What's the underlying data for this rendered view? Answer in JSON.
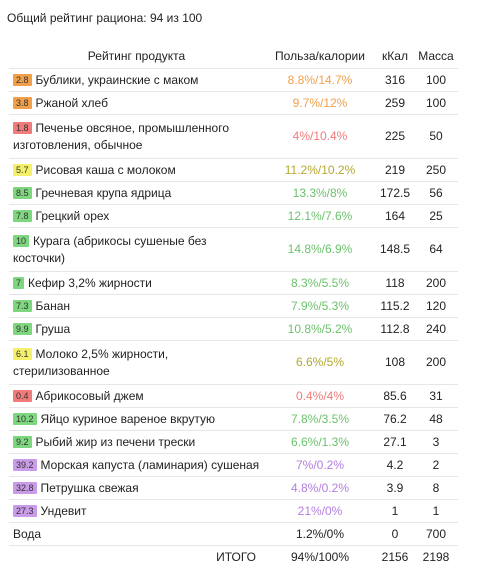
{
  "summary": "Общий рейтинг рациона: 94 из 100",
  "headers": {
    "product": "Рейтинг продукта",
    "ratio": "Польза/калории",
    "kcal": "кКал",
    "mass": "Масса"
  },
  "rows": [
    {
      "badge": "2.8",
      "badge_color": "#f0a04b",
      "name": "Бублики, украинские с маком",
      "ratio": "8.8%/14.7%",
      "ratio_color": "#f0a04b",
      "kcal": "316",
      "mass": "100",
      "tall": false
    },
    {
      "badge": "3.8",
      "badge_color": "#f0a04b",
      "name": "Ржаной хлеб",
      "ratio": "9.7%/12%",
      "ratio_color": "#f0a04b",
      "kcal": "259",
      "mass": "100",
      "tall": false
    },
    {
      "badge": "1.8",
      "badge_color": "#f07b7b",
      "name": "Печенье овсяное, промышленного изготовления, обычное",
      "ratio": "4%/10.4%",
      "ratio_color": "#f07b7b",
      "kcal": "225",
      "mass": "50",
      "tall": true
    },
    {
      "badge": "5.7",
      "badge_color": "#f4f06a",
      "name": "Рисовая каша с молоком",
      "ratio": "11.2%/10.2%",
      "ratio_color": "#b5a82e",
      "kcal": "219",
      "mass": "250",
      "tall": false
    },
    {
      "badge": "8.5",
      "badge_color": "#7ed67e",
      "name": "Гречневая крупа ядрица",
      "ratio": "13.3%/8%",
      "ratio_color": "#6cc26c",
      "kcal": "172.5",
      "mass": "56",
      "tall": false
    },
    {
      "badge": "7.8",
      "badge_color": "#7ed67e",
      "name": "Грецкий орех",
      "ratio": "12.1%/7.6%",
      "ratio_color": "#6cc26c",
      "kcal": "164",
      "mass": "25",
      "tall": false
    },
    {
      "badge": "10",
      "badge_color": "#7ed67e",
      "name": "Курага (абрикосы сушеные без косточки)",
      "ratio": "14.8%/6.9%",
      "ratio_color": "#6cc26c",
      "kcal": "148.5",
      "mass": "64",
      "tall": true
    },
    {
      "badge": "7",
      "badge_color": "#7ed67e",
      "name": "Кефир 3,2% жирности",
      "ratio": "8.3%/5.5%",
      "ratio_color": "#6cc26c",
      "kcal": "118",
      "mass": "200",
      "tall": false
    },
    {
      "badge": "7.3",
      "badge_color": "#7ed67e",
      "name": "Банан",
      "ratio": "7.9%/5.3%",
      "ratio_color": "#6cc26c",
      "kcal": "115.2",
      "mass": "120",
      "tall": false
    },
    {
      "badge": "9.9",
      "badge_color": "#7ed67e",
      "name": "Груша",
      "ratio": "10.8%/5.2%",
      "ratio_color": "#6cc26c",
      "kcal": "112.8",
      "mass": "240",
      "tall": false
    },
    {
      "badge": "6.1",
      "badge_color": "#f4f06a",
      "name": "Молоко 2,5% жирности, стерилизованное",
      "ratio": "6.6%/5%",
      "ratio_color": "#b5a82e",
      "kcal": "108",
      "mass": "200",
      "tall": true
    },
    {
      "badge": "0.4",
      "badge_color": "#f07b7b",
      "name": "Абрикосовый джем",
      "ratio": "0.4%/4%",
      "ratio_color": "#f07b7b",
      "kcal": "85.6",
      "mass": "31",
      "tall": false
    },
    {
      "badge": "10.2",
      "badge_color": "#7ed67e",
      "name": "Яйцо куриное вареное вкрутую",
      "ratio": "7.8%/3.5%",
      "ratio_color": "#6cc26c",
      "kcal": "76.2",
      "mass": "48",
      "tall": false
    },
    {
      "badge": "9.2",
      "badge_color": "#7ed67e",
      "name": "Рыбий жир из печени трески",
      "ratio": "6.6%/1.3%",
      "ratio_color": "#6cc26c",
      "kcal": "27.1",
      "mass": "3",
      "tall": false
    },
    {
      "badge": "39.2",
      "badge_color": "#c99be8",
      "name": "Морская капуста (ламинария) сушеная",
      "ratio": "7%/0.2%",
      "ratio_color": "#b57ee0",
      "kcal": "4.2",
      "mass": "2",
      "tall": false
    },
    {
      "badge": "32.8",
      "badge_color": "#c99be8",
      "name": "Петрушка свежая",
      "ratio": "4.8%/0.2%",
      "ratio_color": "#b57ee0",
      "kcal": "3.9",
      "mass": "8",
      "tall": false
    },
    {
      "badge": "27.3",
      "badge_color": "#c99be8",
      "name": "Ундевит",
      "ratio": "21%/0%",
      "ratio_color": "#b57ee0",
      "kcal": "1",
      "mass": "1",
      "tall": false
    },
    {
      "badge": "",
      "badge_color": "",
      "name": "Вода",
      "ratio": "1.2%/0%",
      "ratio_color": "#222222",
      "kcal": "0",
      "mass": "700",
      "tall": false
    }
  ],
  "total": {
    "label": "ИТОГО",
    "ratio": "94%/100%",
    "kcal": "2156",
    "mass": "2198"
  }
}
